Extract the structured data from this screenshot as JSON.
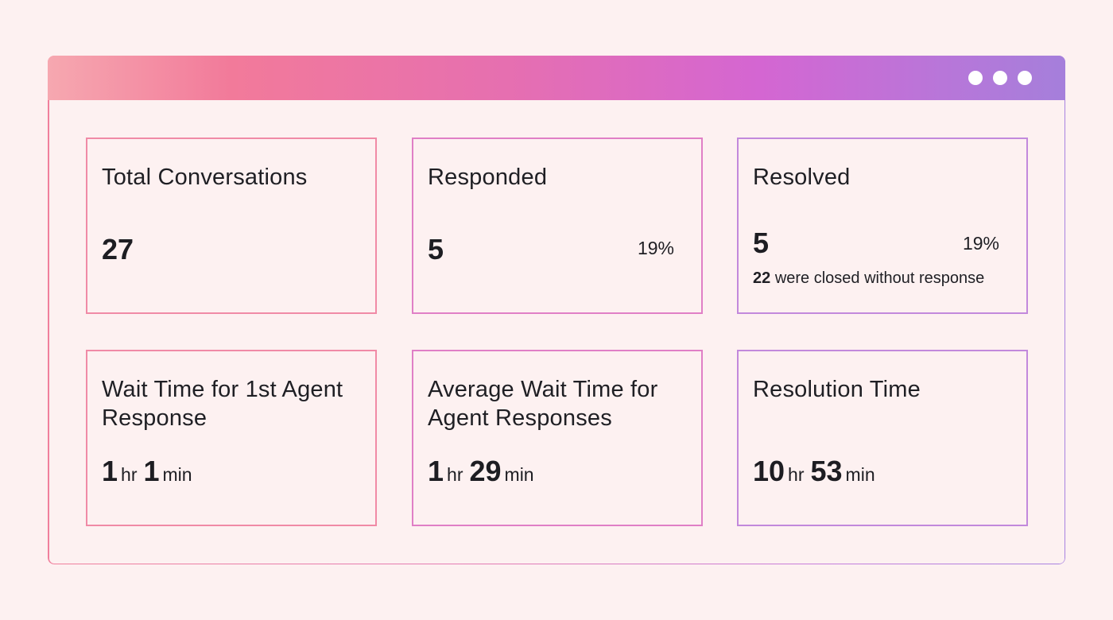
{
  "window": {
    "controls": [
      "dot-icon",
      "dot-icon",
      "dot-icon"
    ]
  },
  "cards": {
    "total": {
      "title": "Total Conversations",
      "value": "27"
    },
    "responded": {
      "title": "Responded",
      "value": "5",
      "percent": "19%"
    },
    "resolved": {
      "title": "Resolved",
      "value": "5",
      "percent": "19%",
      "note_count": "22",
      "note_text": "were closed without response"
    },
    "first_wait": {
      "title": "Wait Time for 1st Agent Response",
      "hours": "1",
      "hours_unit": "hr",
      "minutes": "1",
      "minutes_unit": "min"
    },
    "avg_wait": {
      "title": "Average Wait Time for Agent Responses",
      "hours": "1",
      "hours_unit": "hr",
      "minutes": "29",
      "minutes_unit": "min"
    },
    "resolution": {
      "title": "Resolution Time",
      "hours": "10",
      "hours_unit": "hr",
      "minutes": "53",
      "minutes_unit": "min"
    }
  },
  "colors": {
    "background": "#fdf1f1",
    "gradient_start": "#f27a9a",
    "gradient_mid": "#d466d2",
    "gradient_end": "#a57fdb",
    "text": "#1d1d22"
  }
}
